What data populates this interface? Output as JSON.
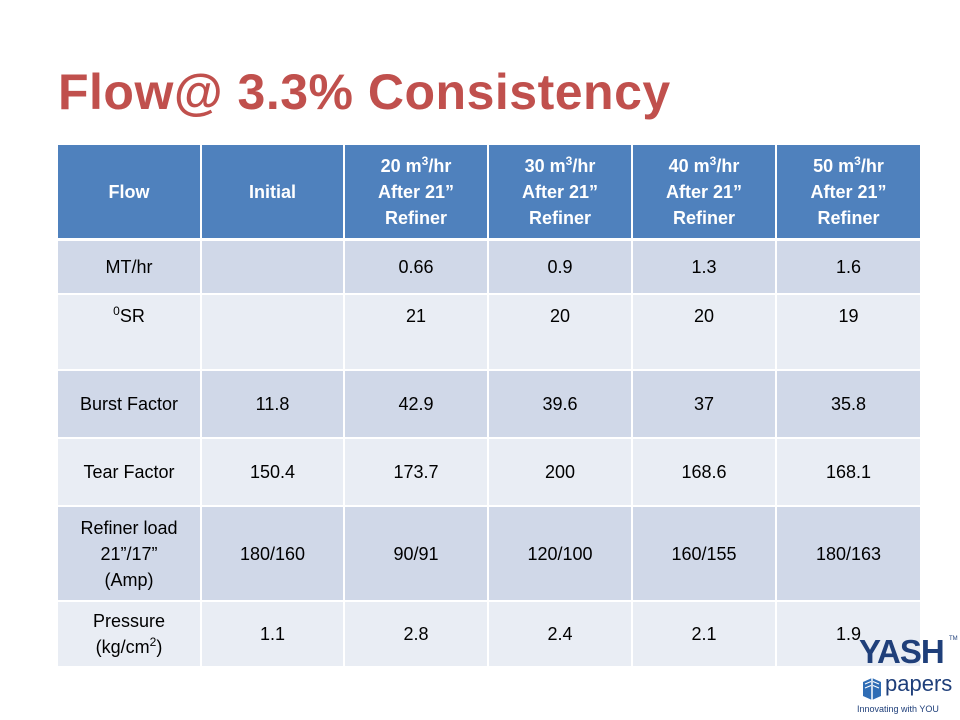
{
  "slide": {
    "title": "Flow@ 3.3% Consistency"
  },
  "table": {
    "headers": [
      {
        "lines": [
          "Flow"
        ]
      },
      {
        "lines": [
          "Initial"
        ]
      },
      {
        "lines": [
          "20 m",
          "3",
          "/hr",
          "After 21”",
          "Refiner"
        ]
      },
      {
        "lines": [
          "30 m",
          "3",
          "/hr",
          "After 21”",
          "Refiner"
        ]
      },
      {
        "lines": [
          "40 m",
          "3",
          "/hr",
          "After 21”",
          "Refiner"
        ]
      },
      {
        "lines": [
          "50 m",
          "3",
          "/hr",
          "After 21”",
          "Refiner"
        ]
      }
    ],
    "rows": [
      {
        "label": "MT/hr",
        "cells": [
          "",
          "0.66",
          "0.9",
          "1.3",
          "1.6"
        ]
      },
      {
        "label_sup": "0",
        "label": "SR",
        "cells": [
          "",
          "21",
          "20",
          "20",
          "19"
        ]
      },
      {
        "label": "Burst Factor",
        "cells": [
          "11.8",
          "42.9",
          "39.6",
          "37",
          "35.8"
        ]
      },
      {
        "label": "Tear Factor",
        "cells": [
          "150.4",
          "173.7",
          "200",
          "168.6",
          "168.1"
        ]
      },
      {
        "label_lines": [
          "Refiner load",
          "21”/17”",
          "(Amp)"
        ],
        "cells": [
          "180/160",
          "90/91",
          "120/100",
          "160/155",
          "180/163"
        ]
      },
      {
        "label_lines": [
          "Pressure",
          "(kg/cm",
          "2",
          ")"
        ],
        "cells": [
          "1.1",
          "2.8",
          "2.4",
          "2.1",
          "1.9"
        ]
      }
    ]
  },
  "logo": {
    "brand": "YASH",
    "trademark": "TM",
    "product": "papers",
    "tagline": "Innovating with YOU",
    "color": "#1f3f7a",
    "icon": "book-icon"
  },
  "colors": {
    "title": "#c0504d",
    "header_bg": "#4f81bd",
    "row_dark": "#d0d8e8",
    "row_light": "#e9edf4"
  }
}
